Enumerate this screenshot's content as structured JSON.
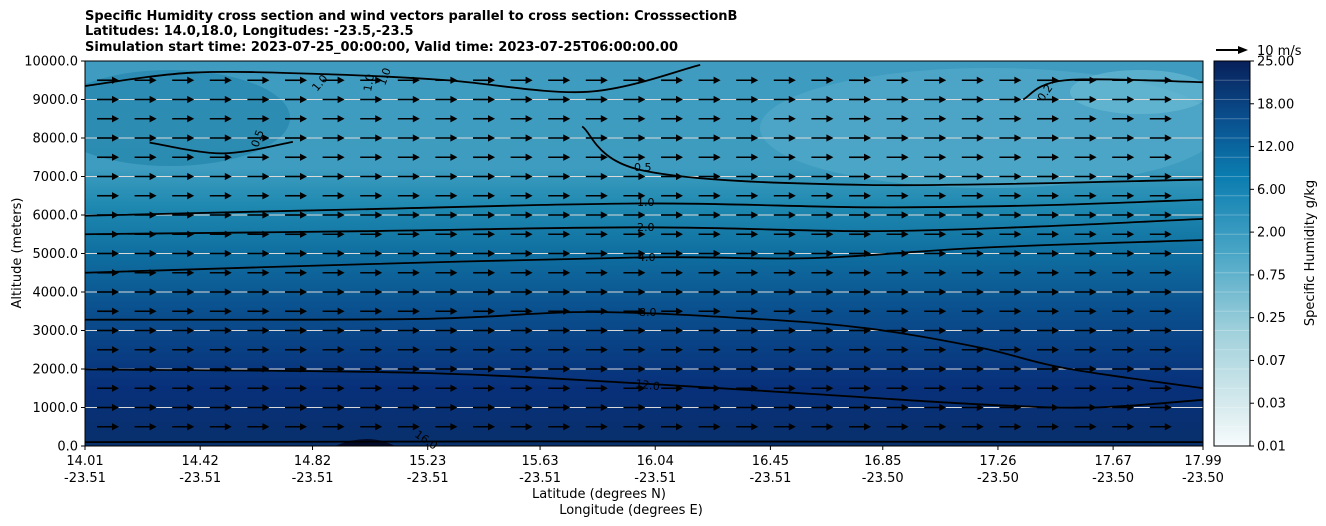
{
  "chart_data": {
    "type": "contour",
    "title": "Specific Humidity cross section and wind vectors parallel to cross section: CrosssectionB",
    "subtitle_lines": [
      "Latitudes: 14.0,18.0, Longitudes: -23.5,-23.5",
      "Simulation start time: 2023-07-25_00:00:00, Valid time: 2023-07-25T06:00:00.00"
    ],
    "ylabel": "Altitude (meters)",
    "xlabel_lines": [
      "Latitude (degrees N)",
      "Longitude (degrees E)"
    ],
    "ylim": [
      0,
      10000
    ],
    "y_ticks": [
      "0.0",
      "1000.0",
      "2000.0",
      "3000.0",
      "4000.0",
      "5000.0",
      "6000.0",
      "7000.0",
      "8000.0",
      "9000.0",
      "10000.0"
    ],
    "x_ticks": [
      {
        "lat": "14.01",
        "lon": "-23.51"
      },
      {
        "lat": "14.42",
        "lon": "-23.51"
      },
      {
        "lat": "14.82",
        "lon": "-23.51"
      },
      {
        "lat": "15.23",
        "lon": "-23.51"
      },
      {
        "lat": "15.63",
        "lon": "-23.51"
      },
      {
        "lat": "16.04",
        "lon": "-23.51"
      },
      {
        "lat": "16.45",
        "lon": "-23.51"
      },
      {
        "lat": "16.85",
        "lon": "-23.50"
      },
      {
        "lat": "17.26",
        "lon": "-23.50"
      },
      {
        "lat": "17.67",
        "lon": "-23.50"
      },
      {
        "lat": "17.99",
        "lon": "-23.50"
      }
    ],
    "grid": "horizontal",
    "colorbar": {
      "label": "Specific Humidity g/kg",
      "tick_labels": [
        "0.01",
        "0.03",
        "0.07",
        "0.25",
        "0.75",
        "2.00",
        "6.00",
        "12.00",
        "18.00",
        "25.00"
      ],
      "levels": 20,
      "colormap": "white-to-darkblue"
    },
    "contour_labels": [
      "0.2",
      "0.5",
      "0.5",
      "1.0",
      "1.0",
      "1.0",
      "1.0",
      "2.0",
      "4.0",
      "8.0",
      "12.0",
      "16.0"
    ],
    "contour_lines": [
      {
        "level": "16.0",
        "points": [
          [
            14.01,
            100
          ],
          [
            15.6,
            120
          ],
          [
            17.99,
            100
          ]
        ]
      },
      {
        "level": "12.0",
        "points": [
          [
            14.01,
            1990
          ],
          [
            15.2,
            1900
          ],
          [
            16.0,
            1620
          ],
          [
            16.6,
            1350
          ],
          [
            17.2,
            1080
          ],
          [
            17.6,
            1000
          ],
          [
            17.99,
            1200
          ]
        ]
      },
      {
        "level": "8.0",
        "points": [
          [
            14.01,
            3280
          ],
          [
            15.2,
            3300
          ],
          [
            15.8,
            3480
          ],
          [
            16.4,
            3300
          ],
          [
            16.8,
            3050
          ],
          [
            17.2,
            2550
          ],
          [
            17.5,
            2020
          ],
          [
            17.99,
            1500
          ]
        ]
      },
      {
        "level": "4.0",
        "points": [
          [
            14.01,
            4500
          ],
          [
            15.0,
            4720
          ],
          [
            16.0,
            4900
          ],
          [
            16.6,
            4880
          ],
          [
            17.2,
            5150
          ],
          [
            17.99,
            5350
          ]
        ]
      },
      {
        "level": "2.0",
        "points": [
          [
            14.01,
            5500
          ],
          [
            15.0,
            5580
          ],
          [
            16.0,
            5680
          ],
          [
            16.8,
            5580
          ],
          [
            17.4,
            5700
          ],
          [
            17.99,
            5900
          ]
        ]
      },
      {
        "level": "1.0",
        "points": [
          [
            14.01,
            5980
          ],
          [
            15.0,
            6150
          ],
          [
            16.0,
            6300
          ],
          [
            16.8,
            6200
          ],
          [
            17.4,
            6250
          ],
          [
            17.99,
            6400
          ]
        ]
      },
      {
        "level": "0.5",
        "points": [
          [
            15.78,
            8300
          ],
          [
            16.0,
            7150
          ],
          [
            16.8,
            6780
          ],
          [
            17.99,
            6920
          ]
        ]
      },
      {
        "level": "1.0",
        "points": [
          [
            14.01,
            9350
          ],
          [
            14.4,
            9700
          ],
          [
            14.9,
            9650
          ],
          [
            15.3,
            9500
          ],
          [
            15.8,
            9200
          ],
          [
            16.2,
            9900
          ]
        ]
      },
      {
        "level": "0.5",
        "points": [
          [
            14.24,
            7880
          ],
          [
            14.5,
            7600
          ],
          [
            14.75,
            7900
          ]
        ]
      },
      {
        "level": "0.2",
        "points": [
          [
            17.35,
            9000
          ],
          [
            17.5,
            9500
          ],
          [
            17.99,
            9450
          ]
        ]
      }
    ],
    "wind_vectors": {
      "reference_label": "10 m/s",
      "reference_speed": 10,
      "direction": "parallel to cross section, toward increasing latitude",
      "typical_speed": 10
    }
  }
}
